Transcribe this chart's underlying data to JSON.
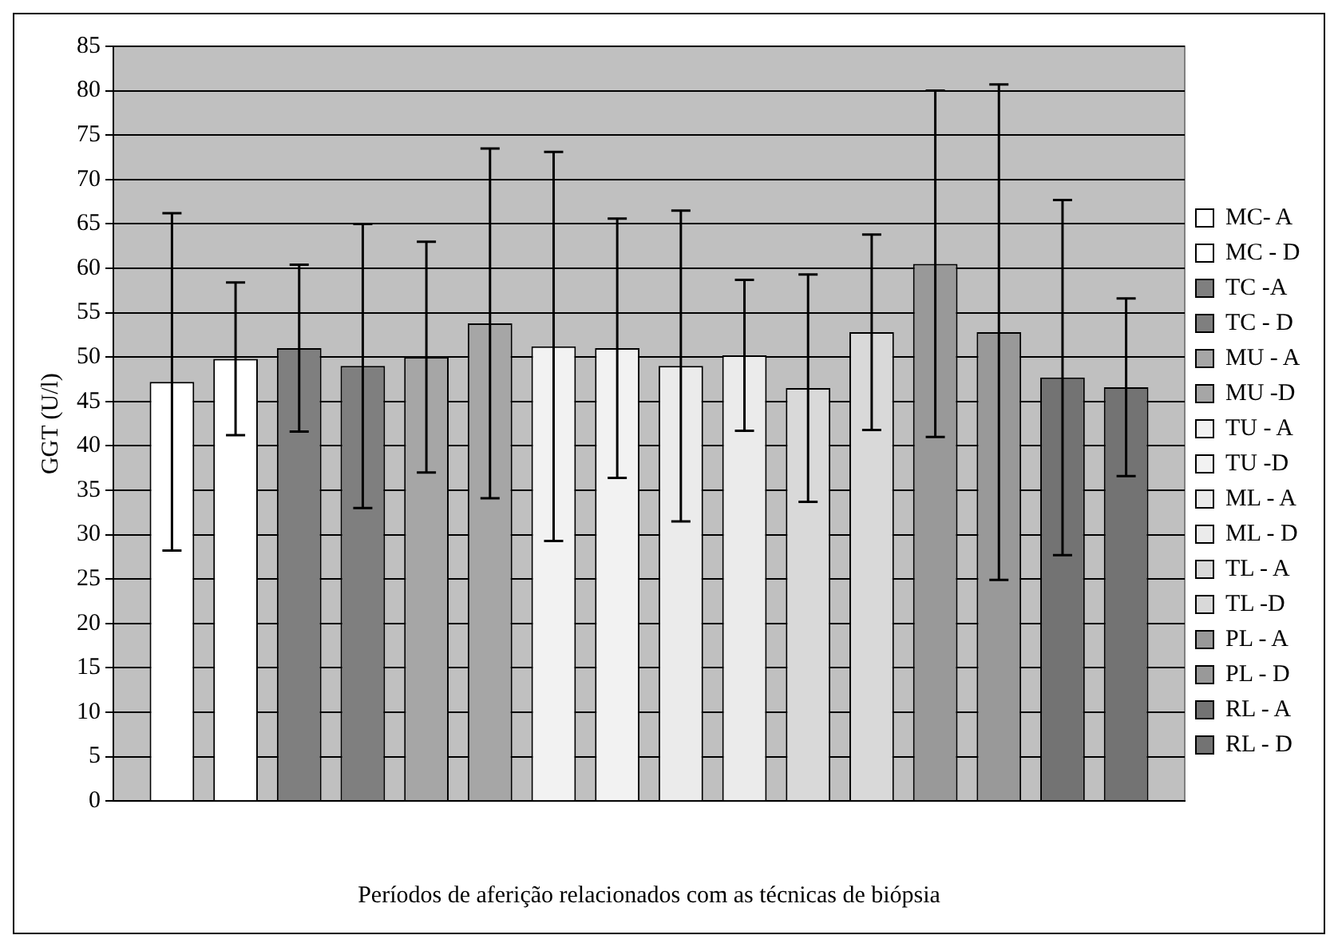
{
  "chart_data": {
    "type": "bar",
    "xlabel": "Períodos de aferição relacionados com as técnicas de biópsia",
    "ylabel": "GGT (U/l)",
    "categories": [
      null
    ],
    "series": [
      {
        "name": "MC- A",
        "color": "#ffffff",
        "values": [
          47.2
        ],
        "errors": [
          19
        ]
      },
      {
        "name": "MC - D",
        "color": "#ffffff",
        "values": [
          49.8
        ],
        "errors": [
          8.6
        ]
      },
      {
        "name": "TC -A",
        "color": "#7f7f7f",
        "values": [
          51
        ],
        "errors": [
          9.4
        ]
      },
      {
        "name": "TC - D",
        "color": "#7f7f7f",
        "values": [
          49
        ],
        "errors": [
          16
        ]
      },
      {
        "name": "MU - A",
        "color": "#a6a6a6",
        "values": [
          50
        ],
        "errors": [
          13
        ]
      },
      {
        "name": "MU -D",
        "color": "#a6a6a6",
        "values": [
          53.8
        ],
        "errors": [
          19.7
        ]
      },
      {
        "name": "TU - A",
        "color": "#f2f2f2",
        "values": [
          51.2
        ],
        "errors": [
          21.9
        ]
      },
      {
        "name": "TU -D",
        "color": "#f2f2f2",
        "values": [
          51
        ],
        "errors": [
          14.6
        ]
      },
      {
        "name": "ML - A",
        "color": "#ebebeb",
        "values": [
          49
        ],
        "errors": [
          17.5
        ]
      },
      {
        "name": "ML - D",
        "color": "#ebebeb",
        "values": [
          50.2
        ],
        "errors": [
          8.5
        ]
      },
      {
        "name": "TL - A",
        "color": "#d9d9d9",
        "values": [
          46.5
        ],
        "errors": [
          12.8
        ]
      },
      {
        "name": "TL -D",
        "color": "#d9d9d9",
        "values": [
          52.8
        ],
        "errors": [
          11
        ]
      },
      {
        "name": "PL - A",
        "color": "#999999",
        "values": [
          60.5
        ],
        "errors": [
          19.5
        ]
      },
      {
        "name": "PL - D",
        "color": "#999999",
        "values": [
          52.8
        ],
        "errors": [
          27.9
        ]
      },
      {
        "name": "RL - A",
        "color": "#737373",
        "values": [
          47.7
        ],
        "errors": [
          20
        ]
      },
      {
        "name": "RL - D",
        "color": "#737373",
        "values": [
          46.6
        ],
        "errors": [
          10
        ]
      }
    ],
    "ylim": [
      0,
      85
    ],
    "yticks": [
      0,
      5,
      10,
      15,
      20,
      25,
      30,
      35,
      40,
      45,
      50,
      55,
      60,
      65,
      70,
      75,
      80,
      85
    ],
    "grid": "y",
    "legend": "right"
  }
}
